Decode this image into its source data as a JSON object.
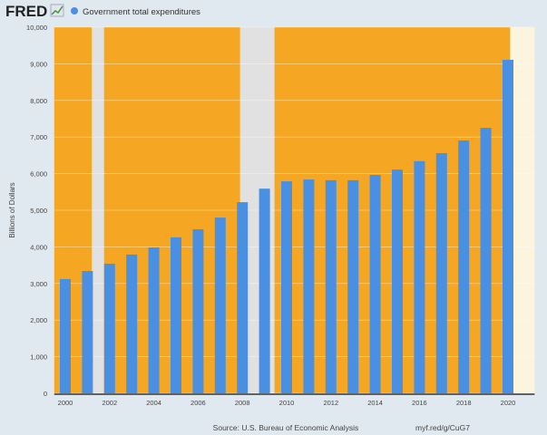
{
  "header": {
    "logo": "FRED",
    "legend_label": "Government total expenditures"
  },
  "footer": {
    "source": "Source: U.S. Bureau of Economic Analysis",
    "link": "myf.red/g/CuG7"
  },
  "colors": {
    "bar": "#4a90e2",
    "shading_orange": "#f5a623",
    "recession_gray": "#e1e1e1",
    "shading_light": "#faf5dc",
    "background": "#e1e9f0"
  },
  "chart_data": {
    "type": "bar",
    "title": "",
    "xlabel": "",
    "ylabel": "Billions of Dollars",
    "ylim": [
      0,
      10000
    ],
    "yticks": [
      0,
      1000,
      2000,
      3000,
      4000,
      5000,
      6000,
      7000,
      8000,
      9000,
      10000
    ],
    "ytick_labels": [
      "0",
      "1,000",
      "2,000",
      "3,000",
      "4,000",
      "5,000",
      "6,000",
      "7,000",
      "8,000",
      "9,000",
      "10,000"
    ],
    "xtick_labels": [
      "2000",
      "2002",
      "2004",
      "2006",
      "2008",
      "2010",
      "2012",
      "2014",
      "2016",
      "2018",
      "2020"
    ],
    "grid": true,
    "legend_placement": "top-left",
    "series": [
      {
        "name": "Government total expenditures",
        "x": [
          2000,
          2001,
          2002,
          2003,
          2004,
          2005,
          2006,
          2007,
          2008,
          2009,
          2010,
          2011,
          2012,
          2013,
          2014,
          2015,
          2016,
          2017,
          2018,
          2019,
          2020
        ],
        "values": [
          3120,
          3340,
          3540,
          3790,
          3985,
          4260,
          4480,
          4800,
          5220,
          5590,
          5790,
          5840,
          5820,
          5820,
          5965,
          6110,
          6340,
          6560,
          6905,
          7250,
          9110
        ]
      }
    ],
    "shading": [
      {
        "from": 1999.5,
        "to": 2001.2,
        "kind": "orange"
      },
      {
        "from": 2001.2,
        "to": 2001.75,
        "kind": "recession"
      },
      {
        "from": 2001.75,
        "to": 2007.9,
        "kind": "orange"
      },
      {
        "from": 2007.9,
        "to": 2009.45,
        "kind": "recession"
      },
      {
        "from": 2009.45,
        "to": 2020.1,
        "kind": "orange"
      },
      {
        "from": 2020.1,
        "to": 2021.2,
        "kind": "light"
      }
    ]
  }
}
